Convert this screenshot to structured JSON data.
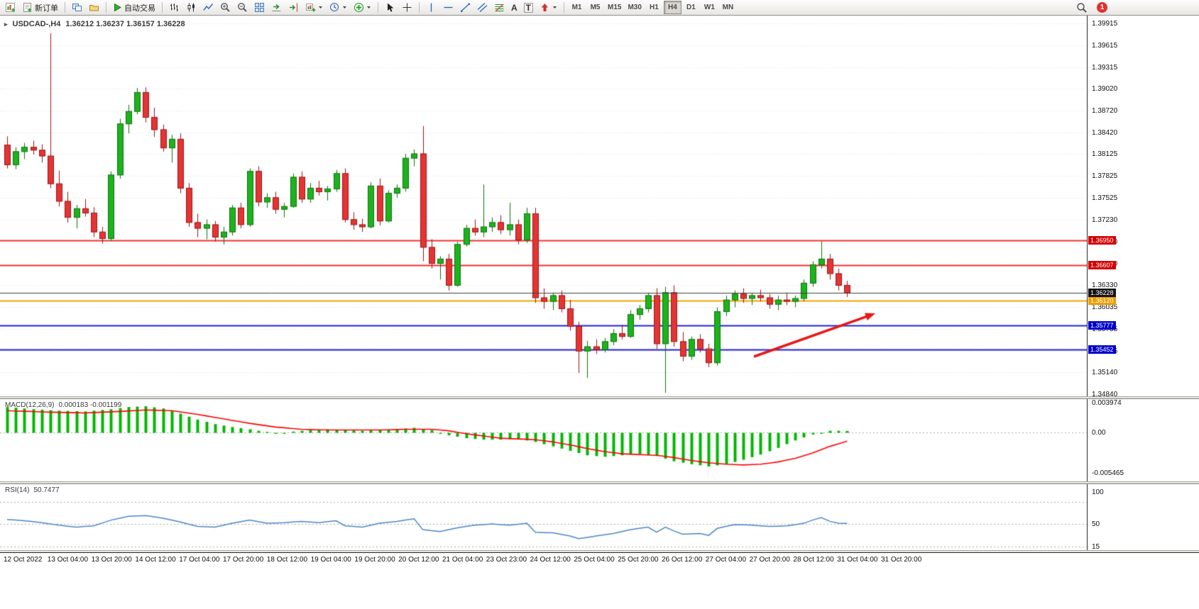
{
  "toolbar": {
    "new_order_label": "新订单",
    "auto_trading_label": "自动交易",
    "text_tool_glyph": "A",
    "label_tool_glyph": "T",
    "timeframes": [
      "M1",
      "M5",
      "M15",
      "M30",
      "H1",
      "H4",
      "D1",
      "W1",
      "MN"
    ],
    "active_timeframe": "H4",
    "notification_badge": "1"
  },
  "chart": {
    "symbol_title": "USDCAD-,H4",
    "ohlc": "1.36212 1.36237 1.36157 1.36228",
    "scale": {
      "top": 1.39915,
      "bottom": 1.3484
    },
    "price_axis": [
      "1.39915",
      "1.39615",
      "1.39315",
      "1.39020",
      "1.38720",
      "1.38420",
      "1.38125",
      "1.37825",
      "1.37525",
      "1.37230",
      "1.36930",
      "1.36630",
      "1.36330",
      "1.36035",
      "1.35735",
      "1.35435",
      "1.35140",
      "1.34840"
    ],
    "hlines": [
      {
        "price": 1.3695,
        "label": "1.36950",
        "color": "#f03434",
        "tag_bg": "#d40000",
        "width": 2
      },
      {
        "price": 1.36607,
        "label": "1.36607",
        "color": "#f03434",
        "tag_bg": "#d40000",
        "width": 2
      },
      {
        "price": 1.3612,
        "label": "1.36120",
        "color": "#f2a400",
        "tag_bg": "#ee9d00",
        "width": 2
      },
      {
        "price": 1.35777,
        "label": "1.35777",
        "color": "#2121dd",
        "tag_bg": "#0000cc",
        "width": 2
      },
      {
        "price": 1.35452,
        "label": "1.35452",
        "color": "#2121dd",
        "tag_bg": "#0000cc",
        "width": 2
      },
      {
        "price": 1.36228,
        "label": "1.36228",
        "color": "#3c3c3c",
        "tag_bg": "#141414",
        "width": 1,
        "on_top": true
      }
    ],
    "colors": {
      "bull": "#1db31d",
      "bull_edge": "#0c720c",
      "bear": "#e53434",
      "bear_edge": "#9c1414"
    },
    "candles": [
      [
        1.3825,
        1.3837,
        1.3793,
        1.3798
      ],
      [
        1.3798,
        1.3822,
        1.3792,
        1.3816
      ],
      [
        1.3816,
        1.3828,
        1.3806,
        1.3822
      ],
      [
        1.3822,
        1.3831,
        1.3812,
        1.3818
      ],
      [
        1.3818,
        1.3826,
        1.3801,
        1.381
      ],
      [
        1.381,
        1.3978,
        1.3766,
        1.3772
      ],
      [
        1.3772,
        1.379,
        1.3741,
        1.3748
      ],
      [
        1.3748,
        1.3761,
        1.3719,
        1.3726
      ],
      [
        1.3726,
        1.3743,
        1.3711,
        1.3738
      ],
      [
        1.3738,
        1.3751,
        1.3727,
        1.3732
      ],
      [
        1.3732,
        1.374,
        1.3699,
        1.3706
      ],
      [
        1.3706,
        1.3713,
        1.369,
        1.3697
      ],
      [
        1.3697,
        1.3789,
        1.3694,
        1.3784
      ],
      [
        1.3784,
        1.3861,
        1.3779,
        1.3854
      ],
      [
        1.3854,
        1.388,
        1.3841,
        1.3871
      ],
      [
        1.3871,
        1.3903,
        1.3867,
        1.3897
      ],
      [
        1.3897,
        1.3904,
        1.3856,
        1.3863
      ],
      [
        1.3863,
        1.3876,
        1.3836,
        1.3846
      ],
      [
        1.3846,
        1.3853,
        1.3816,
        1.3821
      ],
      [
        1.3821,
        1.3839,
        1.3801,
        1.3833
      ],
      [
        1.3833,
        1.3841,
        1.3759,
        1.3766
      ],
      [
        1.3766,
        1.3773,
        1.3713,
        1.3719
      ],
      [
        1.3719,
        1.3731,
        1.3699,
        1.3711
      ],
      [
        1.3711,
        1.3723,
        1.3696,
        1.3716
      ],
      [
        1.3716,
        1.3721,
        1.3693,
        1.3699
      ],
      [
        1.3699,
        1.3713,
        1.3689,
        1.3706
      ],
      [
        1.3706,
        1.3743,
        1.3701,
        1.3739
      ],
      [
        1.3739,
        1.3746,
        1.3711,
        1.3716
      ],
      [
        1.3716,
        1.3793,
        1.3713,
        1.3789
      ],
      [
        1.3789,
        1.3796,
        1.3741,
        1.3747
      ],
      [
        1.3747,
        1.3759,
        1.3739,
        1.3753
      ],
      [
        1.3753,
        1.3761,
        1.3731,
        1.3737
      ],
      [
        1.3737,
        1.3746,
        1.3726,
        1.3741
      ],
      [
        1.3741,
        1.3786,
        1.3739,
        1.3781
      ],
      [
        1.3781,
        1.3789,
        1.3746,
        1.3751
      ],
      [
        1.3751,
        1.3773,
        1.3746,
        1.3766
      ],
      [
        1.3766,
        1.3776,
        1.3756,
        1.3761
      ],
      [
        1.3761,
        1.3769,
        1.3749,
        1.3765
      ],
      [
        1.3765,
        1.3791,
        1.3761,
        1.3786
      ],
      [
        1.3786,
        1.3793,
        1.3719,
        1.3723
      ],
      [
        1.3723,
        1.3733,
        1.3709,
        1.3716
      ],
      [
        1.3716,
        1.3724,
        1.3706,
        1.3713
      ],
      [
        1.3713,
        1.3774,
        1.3711,
        1.3769
      ],
      [
        1.3769,
        1.3779,
        1.3715,
        1.3721
      ],
      [
        1.3721,
        1.3763,
        1.3719,
        1.3759
      ],
      [
        1.3759,
        1.3771,
        1.3753,
        1.3766
      ],
      [
        1.3766,
        1.3813,
        1.3761,
        1.3807
      ],
      [
        1.3807,
        1.3819,
        1.3796,
        1.3813
      ],
      [
        1.3813,
        1.3851,
        1.3666,
        1.3685
      ],
      [
        1.3685,
        1.3696,
        1.3656,
        1.3663
      ],
      [
        1.3663,
        1.3673,
        1.3641,
        1.3669
      ],
      [
        1.3669,
        1.3676,
        1.3626,
        1.3633
      ],
      [
        1.3633,
        1.3693,
        1.3631,
        1.3689
      ],
      [
        1.3689,
        1.3716,
        1.3686,
        1.3711
      ],
      [
        1.3711,
        1.3723,
        1.3701,
        1.3706
      ],
      [
        1.3706,
        1.3771,
        1.3699,
        1.3713
      ],
      [
        1.3713,
        1.3726,
        1.3706,
        1.3719
      ],
      [
        1.3719,
        1.3729,
        1.3703,
        1.3709
      ],
      [
        1.3709,
        1.3746,
        1.3701,
        1.3716
      ],
      [
        1.3716,
        1.3723,
        1.3689,
        1.3695
      ],
      [
        1.3695,
        1.3739,
        1.3691,
        1.3731
      ],
      [
        1.3731,
        1.3739,
        1.3609,
        1.3616
      ],
      [
        1.3616,
        1.3629,
        1.3601,
        1.3611
      ],
      [
        1.3611,
        1.3623,
        1.3599,
        1.3619
      ],
      [
        1.3619,
        1.3626,
        1.3596,
        1.3601
      ],
      [
        1.3601,
        1.3613,
        1.3571,
        1.3577
      ],
      [
        1.3577,
        1.3583,
        1.3513,
        1.3543
      ],
      [
        1.3543,
        1.3557,
        1.3506,
        1.3549
      ],
      [
        1.3549,
        1.3559,
        1.3539,
        1.3545
      ],
      [
        1.3545,
        1.3561,
        1.3541,
        1.3556
      ],
      [
        1.3556,
        1.3573,
        1.3551,
        1.3567
      ],
      [
        1.3567,
        1.3579,
        1.3559,
        1.3563
      ],
      [
        1.3563,
        1.3599,
        1.3561,
        1.3593
      ],
      [
        1.3593,
        1.3606,
        1.3586,
        1.3601
      ],
      [
        1.3601,
        1.3623,
        1.3596,
        1.3619
      ],
      [
        1.3619,
        1.3629,
        1.3546,
        1.3553
      ],
      [
        1.3553,
        1.3631,
        1.3486,
        1.3623
      ],
      [
        1.3623,
        1.3633,
        1.3549,
        1.3556
      ],
      [
        1.3556,
        1.3569,
        1.3529,
        1.3536
      ],
      [
        1.3536,
        1.3563,
        1.3531,
        1.3559
      ],
      [
        1.3559,
        1.3566,
        1.3541,
        1.3546
      ],
      [
        1.3546,
        1.3553,
        1.3521,
        1.3527
      ],
      [
        1.3527,
        1.3603,
        1.3523,
        1.3597
      ],
      [
        1.3597,
        1.3619,
        1.3591,
        1.3613
      ],
      [
        1.3613,
        1.3626,
        1.3603,
        1.3621
      ],
      [
        1.3621,
        1.3629,
        1.3609,
        1.3615
      ],
      [
        1.3615,
        1.3623,
        1.3606,
        1.3619
      ],
      [
        1.3619,
        1.3627,
        1.3611,
        1.3616
      ],
      [
        1.3616,
        1.3621,
        1.3601,
        1.3607
      ],
      [
        1.3607,
        1.3619,
        1.3599,
        1.3613
      ],
      [
        1.3613,
        1.3623,
        1.3606,
        1.3611
      ],
      [
        1.3611,
        1.3619,
        1.3603,
        1.3615
      ],
      [
        1.3615,
        1.3641,
        1.3611,
        1.3636
      ],
      [
        1.3636,
        1.3666,
        1.3631,
        1.3661
      ],
      [
        1.3661,
        1.3693,
        1.3656,
        1.3669
      ],
      [
        1.3669,
        1.3676,
        1.3641,
        1.3649
      ],
      [
        1.3649,
        1.3656,
        1.3626,
        1.3633
      ],
      [
        1.3633,
        1.3639,
        1.3617,
        1.36228
      ]
    ],
    "arrow": {
      "from": [
        1062,
        481
      ],
      "to": [
        1233,
        420
      ],
      "color": "#e81717"
    }
  },
  "macd": {
    "title": "MACD(12,26,9)",
    "values": "0.000183 -0.001199",
    "axis": [
      {
        "label": "0.003974",
        "value": 0.003974
      },
      {
        "label": "0.00",
        "value": 0
      },
      {
        "label": "-0.005465",
        "value": -0.005465
      }
    ],
    "colors": {
      "histogram": "#00b800",
      "signal": "#ff0000"
    },
    "hist_points": [
      [
        0,
        0.0034
      ],
      [
        3,
        0.0031
      ],
      [
        6,
        0.0029
      ],
      [
        9,
        0.0028
      ],
      [
        12,
        0.0031
      ],
      [
        14,
        0.0034
      ],
      [
        16,
        0.0035
      ],
      [
        18,
        0.0032
      ],
      [
        20,
        0.0025
      ],
      [
        22,
        0.0017
      ],
      [
        24,
        0.0011
      ],
      [
        26,
        0.0007
      ],
      [
        28,
        0.0004
      ],
      [
        30,
        0.0
      ],
      [
        31,
        -0.0002
      ],
      [
        33,
        0.0001
      ],
      [
        35,
        0.0003
      ],
      [
        37,
        0.0004
      ],
      [
        39,
        0.0003
      ],
      [
        41,
        0.0002
      ],
      [
        43,
        0.0003
      ],
      [
        45,
        0.0004
      ],
      [
        47,
        0.0006
      ],
      [
        49,
        0.0003
      ],
      [
        51,
        -0.0004
      ],
      [
        53,
        -0.0008
      ],
      [
        55,
        -0.001
      ],
      [
        57,
        -0.001
      ],
      [
        59,
        -0.0009
      ],
      [
        61,
        -0.0013
      ],
      [
        63,
        -0.0019
      ],
      [
        65,
        -0.0025
      ],
      [
        67,
        -0.0031
      ],
      [
        69,
        -0.0033
      ],
      [
        71,
        -0.0031
      ],
      [
        73,
        -0.0029
      ],
      [
        75,
        -0.0032
      ],
      [
        77,
        -0.0039
      ],
      [
        79,
        -0.0043
      ],
      [
        81,
        -0.0046
      ],
      [
        83,
        -0.0043
      ],
      [
        85,
        -0.0037
      ],
      [
        87,
        -0.003
      ],
      [
        89,
        -0.0021
      ],
      [
        91,
        -0.0011
      ],
      [
        93,
        -0.0003
      ],
      [
        95,
        0.0002
      ],
      [
        97,
        0.000183
      ]
    ],
    "signal_points": [
      [
        0,
        0.0029
      ],
      [
        5,
        0.0027
      ],
      [
        9,
        0.0026
      ],
      [
        13,
        0.0028
      ],
      [
        16,
        0.003
      ],
      [
        19,
        0.0029
      ],
      [
        22,
        0.0024
      ],
      [
        25,
        0.0018
      ],
      [
        28,
        0.0012
      ],
      [
        31,
        0.0007
      ],
      [
        34,
        0.0004
      ],
      [
        37,
        0.0003
      ],
      [
        40,
        0.0003
      ],
      [
        43,
        0.0003
      ],
      [
        46,
        0.0004
      ],
      [
        49,
        0.0004
      ],
      [
        51,
        0.0002
      ],
      [
        53,
        -0.0002
      ],
      [
        55,
        -0.0005
      ],
      [
        57,
        -0.0008
      ],
      [
        59,
        -0.0009
      ],
      [
        61,
        -0.001
      ],
      [
        63,
        -0.0013
      ],
      [
        65,
        -0.0017
      ],
      [
        67,
        -0.0022
      ],
      [
        69,
        -0.0026
      ],
      [
        71,
        -0.0029
      ],
      [
        73,
        -0.003
      ],
      [
        75,
        -0.0031
      ],
      [
        77,
        -0.0034
      ],
      [
        79,
        -0.0038
      ],
      [
        81,
        -0.0041
      ],
      [
        83,
        -0.0043
      ],
      [
        85,
        -0.0044
      ],
      [
        87,
        -0.0043
      ],
      [
        89,
        -0.004
      ],
      [
        91,
        -0.0035
      ],
      [
        93,
        -0.0028
      ],
      [
        95,
        -0.0019
      ],
      [
        97,
        -0.0012
      ]
    ]
  },
  "rsi": {
    "title": "RSI(14)",
    "value": "50.7477",
    "color": "#4a86c8",
    "levels": [
      85,
      50,
      15
    ],
    "axis": [
      {
        "label": "100",
        "value": 100
      },
      {
        "label": "50",
        "value": 50
      },
      {
        "label": "15",
        "value": 15
      }
    ],
    "points": [
      [
        0,
        57
      ],
      [
        2,
        55
      ],
      [
        4,
        52
      ],
      [
        6,
        48
      ],
      [
        8,
        45
      ],
      [
        10,
        47
      ],
      [
        12,
        56
      ],
      [
        14,
        62
      ],
      [
        16,
        63
      ],
      [
        18,
        59
      ],
      [
        20,
        53
      ],
      [
        22,
        46
      ],
      [
        24,
        45
      ],
      [
        26,
        51
      ],
      [
        28,
        56
      ],
      [
        30,
        51
      ],
      [
        32,
        52
      ],
      [
        34,
        54
      ],
      [
        36,
        52
      ],
      [
        38,
        55
      ],
      [
        39,
        47
      ],
      [
        41,
        45
      ],
      [
        43,
        51
      ],
      [
        45,
        54
      ],
      [
        47,
        58
      ],
      [
        48,
        41
      ],
      [
        50,
        38
      ],
      [
        52,
        44
      ],
      [
        54,
        48
      ],
      [
        56,
        50
      ],
      [
        58,
        48
      ],
      [
        60,
        51
      ],
      [
        61,
        37
      ],
      [
        63,
        36
      ],
      [
        65,
        31
      ],
      [
        66,
        27
      ],
      [
        68,
        31
      ],
      [
        70,
        35
      ],
      [
        72,
        41
      ],
      [
        74,
        45
      ],
      [
        75,
        37
      ],
      [
        76,
        45
      ],
      [
        77,
        39
      ],
      [
        78,
        34
      ],
      [
        80,
        35
      ],
      [
        81,
        32
      ],
      [
        82,
        43
      ],
      [
        84,
        49
      ],
      [
        86,
        48
      ],
      [
        88,
        46
      ],
      [
        90,
        47
      ],
      [
        92,
        51
      ],
      [
        93,
        56
      ],
      [
        94,
        60
      ],
      [
        95,
        54
      ],
      [
        96,
        51
      ],
      [
        97,
        50.7
      ]
    ]
  },
  "time_axis": [
    "12 Oct 2022",
    "13 Oct 04:00",
    "13 Oct 20:00",
    "14 Oct 12:00",
    "17 Oct 04:00",
    "17 Oct 20:00",
    "18 Oct 12:00",
    "19 Oct 04:00",
    "19 Oct 20:00",
    "20 Oct 12:00",
    "21 Oct 04:00",
    "23 Oct 23:00",
    "24 Oct 12:00",
    "25 Oct 04:00",
    "25 Oct 20:00",
    "26 Oct 12:00",
    "27 Oct 04:00",
    "27 Oct 20:00",
    "28 Oct 12:00",
    "31 Oct 04:00",
    "31 Oct 20:00"
  ]
}
